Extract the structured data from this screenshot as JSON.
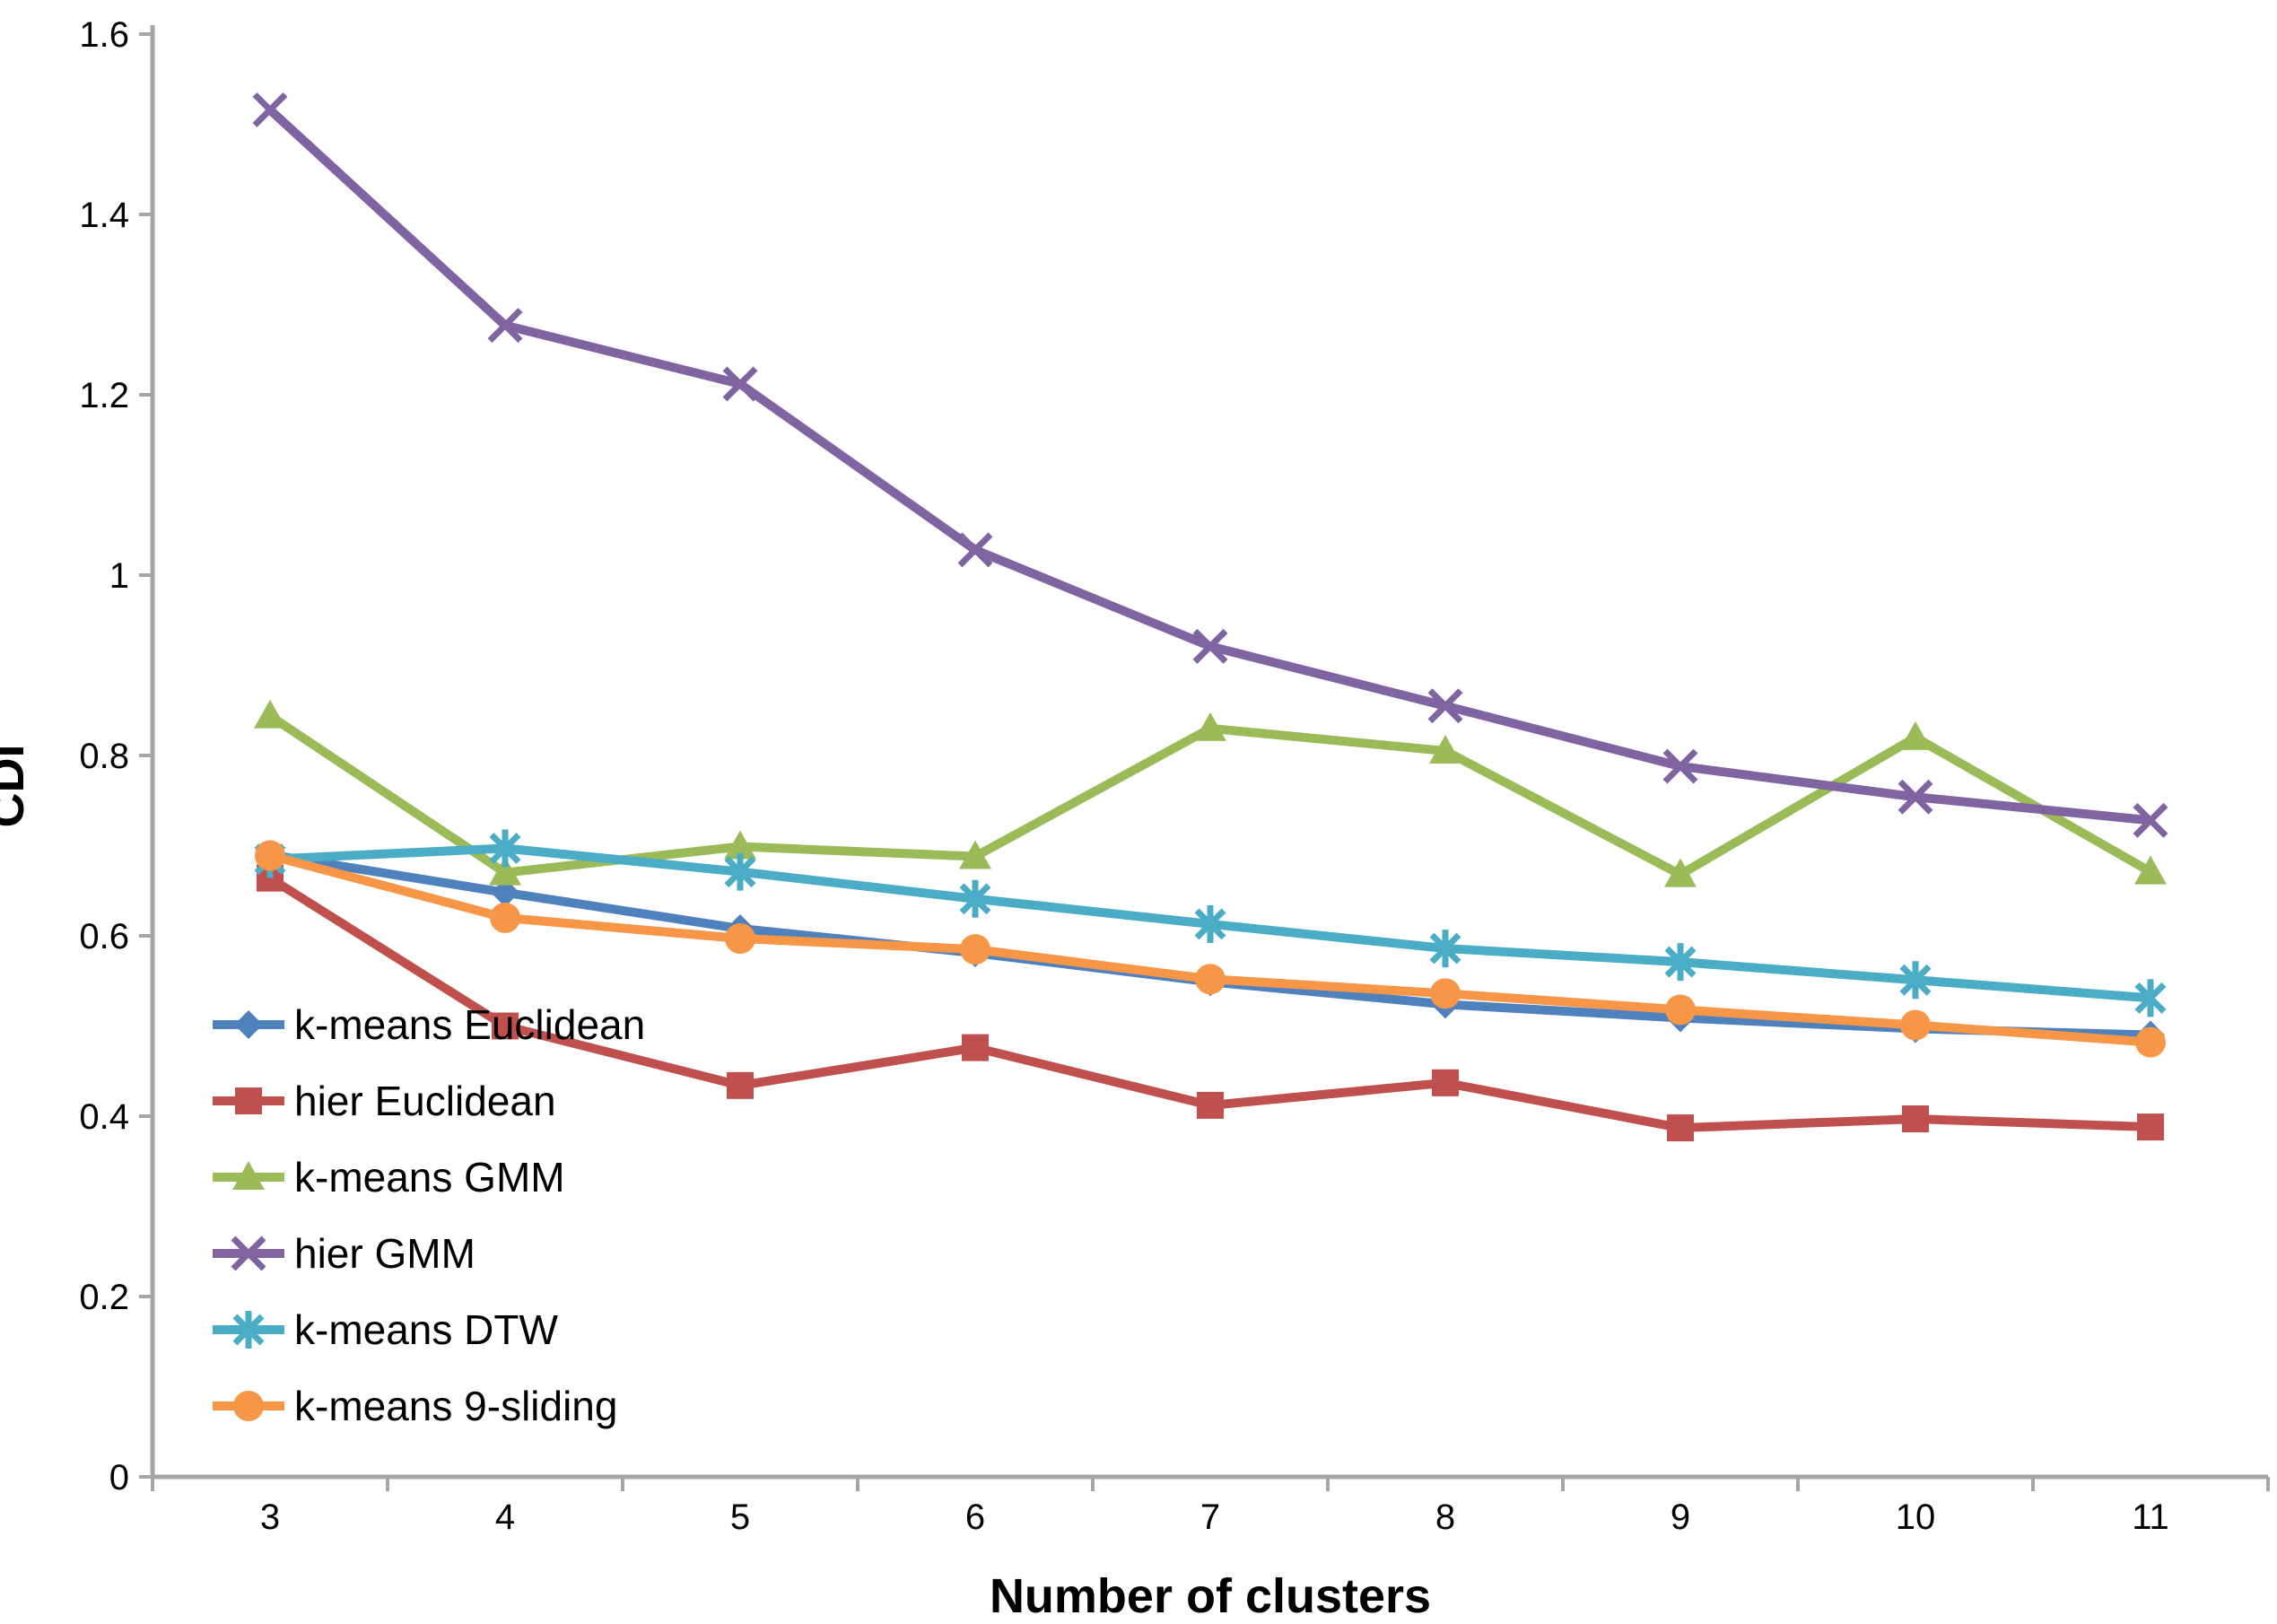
{
  "chart_data": {
    "type": "line",
    "title": "",
    "xlabel": "Number of clusters",
    "ylabel": "CDI",
    "x": [
      3,
      4,
      5,
      6,
      7,
      8,
      9,
      10,
      11
    ],
    "ylim": [
      0,
      1.6
    ],
    "ytick_labels": [
      "0",
      "0.2",
      "0.4",
      "0.6",
      "0.8",
      "1",
      "1.2",
      "1.4",
      "1.6"
    ],
    "grid": false,
    "legend_position": "inside-bottom-left",
    "axis_color": "#a6a6a6",
    "tick_label_color": "#000000",
    "series": [
      {
        "name": "k-means Euclidean",
        "color": "#4F81BD",
        "marker": "diamond",
        "values": [
          0.69,
          0.648,
          0.608,
          0.581,
          0.549,
          0.524,
          0.509,
          0.497,
          0.49
        ]
      },
      {
        "name": "hier Euclidean",
        "color": "#C0504D",
        "marker": "square",
        "values": [
          0.664,
          0.5,
          0.434,
          0.476,
          0.412,
          0.437,
          0.387,
          0.397,
          0.388
        ]
      },
      {
        "name": "k-means GMM",
        "color": "#9BBB59",
        "marker": "triangle",
        "values": [
          0.844,
          0.67,
          0.699,
          0.688,
          0.83,
          0.805,
          0.668,
          0.82,
          0.671
        ]
      },
      {
        "name": "hier GMM",
        "color": "#8064A2",
        "marker": "x",
        "values": [
          1.516,
          1.277,
          1.212,
          1.028,
          0.921,
          0.855,
          0.788,
          0.754,
          0.728
        ]
      },
      {
        "name": "k-means DTW",
        "color": "#4BACC6",
        "marker": "asterisk",
        "values": [
          0.685,
          0.697,
          0.671,
          0.641,
          0.613,
          0.586,
          0.571,
          0.551,
          0.531
        ]
      },
      {
        "name": "k-means 9-sliding",
        "color": "#F79646",
        "marker": "circle",
        "values": [
          0.689,
          0.62,
          0.597,
          0.585,
          0.552,
          0.536,
          0.518,
          0.501,
          0.482
        ]
      }
    ]
  }
}
